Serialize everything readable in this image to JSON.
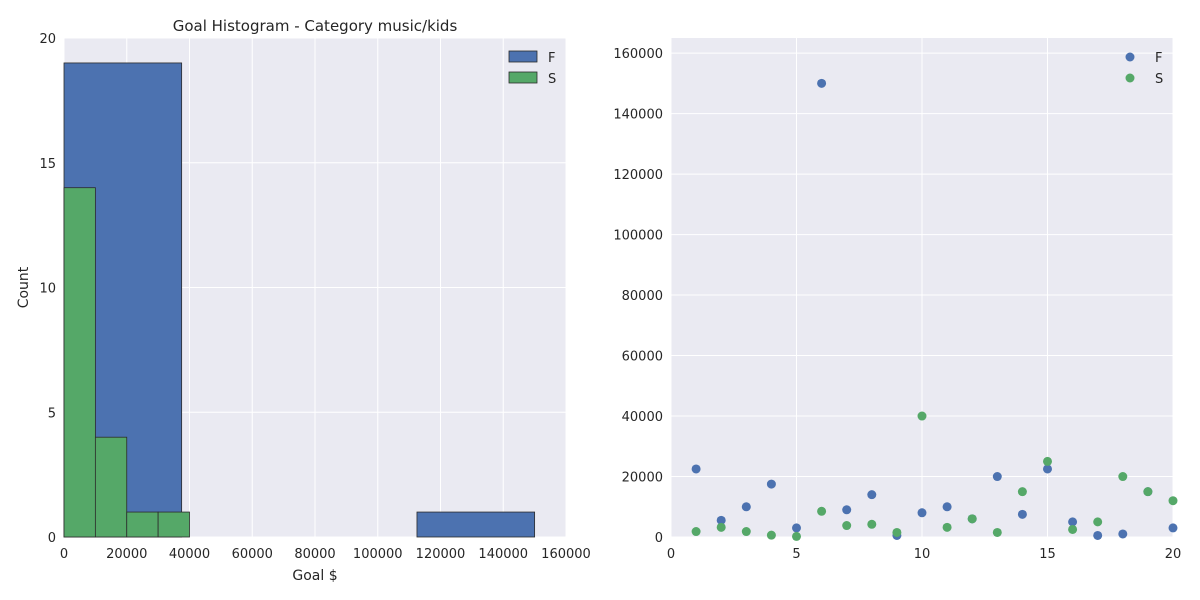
{
  "colors": {
    "F": "#4c72b0",
    "S": "#55a868",
    "axes_bg": "#eaeaf2",
    "grid": "#ffffff",
    "bar_edge": "#2b2b2b"
  },
  "chart_data": [
    {
      "type": "bar",
      "subtype": "histogram",
      "title": "Goal Histogram - Category music/kids",
      "xlabel": "Goal $",
      "ylabel": "Count",
      "xlim": [
        0,
        160000
      ],
      "ylim": [
        0,
        20
      ],
      "grid": true,
      "legend_position": "top-right",
      "xticks": [
        "0",
        "20000",
        "40000",
        "60000",
        "80000",
        "100000",
        "120000",
        "140000",
        "160000"
      ],
      "yticks": [
        "0",
        "5",
        "10",
        "15",
        "20"
      ],
      "series": [
        {
          "name": "F",
          "bins": [
            {
              "start": 0,
              "end": 37500,
              "count": 19
            },
            {
              "start": 37500,
              "end": 75000,
              "count": 0
            },
            {
              "start": 75000,
              "end": 112500,
              "count": 0
            },
            {
              "start": 112500,
              "end": 150000,
              "count": 1
            }
          ]
        },
        {
          "name": "S",
          "bins": [
            {
              "start": 0,
              "end": 10000,
              "count": 14
            },
            {
              "start": 10000,
              "end": 20000,
              "count": 4
            },
            {
              "start": 20000,
              "end": 30000,
              "count": 1
            },
            {
              "start": 30000,
              "end": 40000,
              "count": 1
            }
          ]
        }
      ]
    },
    {
      "type": "scatter",
      "title": "",
      "xlabel": "",
      "ylabel": "",
      "xlim": [
        0,
        20
      ],
      "ylim": [
        0,
        165000
      ],
      "grid": true,
      "legend_position": "top-right",
      "xticks": [
        "0",
        "5",
        "10",
        "15",
        "20"
      ],
      "yticks": [
        "0",
        "20000",
        "40000",
        "60000",
        "80000",
        "100000",
        "120000",
        "140000",
        "160000"
      ],
      "series": [
        {
          "name": "F",
          "x": [
            1,
            2,
            3,
            4,
            5,
            6,
            7,
            8,
            9,
            10,
            11,
            12,
            13,
            14,
            15,
            16,
            17,
            18,
            19,
            20
          ],
          "y": [
            22500,
            5500,
            10000,
            17500,
            3000,
            150000,
            9000,
            14000,
            500,
            8000,
            10000,
            6000,
            20000,
            7500,
            22500,
            5000,
            500,
            1000,
            15000,
            3000
          ]
        },
        {
          "name": "S",
          "x": [
            1,
            2,
            3,
            4,
            5,
            6,
            7,
            8,
            9,
            10,
            11,
            12,
            13,
            14,
            15,
            16,
            17,
            18,
            19,
            20
          ],
          "y": [
            1800,
            3200,
            1800,
            600,
            200,
            8500,
            3800,
            4200,
            1500,
            40000,
            3200,
            6000,
            1500,
            15000,
            25000,
            2500,
            5000,
            20000,
            15000,
            12000
          ]
        }
      ]
    }
  ]
}
